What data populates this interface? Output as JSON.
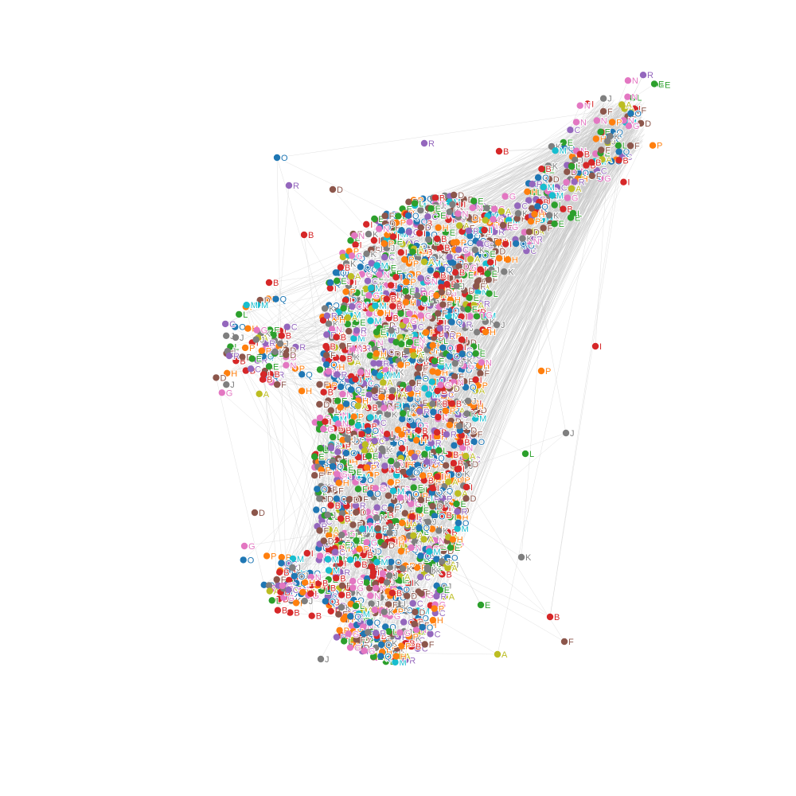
{
  "graph": {
    "colors": {
      "A": "#bcbd22",
      "B": "#d62728",
      "C": "#9467bd",
      "D": "#8c564b",
      "E": "#2ca02c",
      "F": "#8c564b",
      "G": "#e377c2",
      "H": "#ff7f0e",
      "I": "#d62728",
      "J": "#7f7f7f",
      "K": "#7f7f7f",
      "L": "#2ca02c",
      "M": "#17becf",
      "N": "#e377c2",
      "O": "#1f77b4",
      "P": "#ff7f0e",
      "Q": "#1f77b4",
      "R": "#9467bd"
    },
    "edge_color": "#c8c8c8",
    "background": "#ffffff",
    "node_count_dense": 1400,
    "edge_count": 2600
  }
}
